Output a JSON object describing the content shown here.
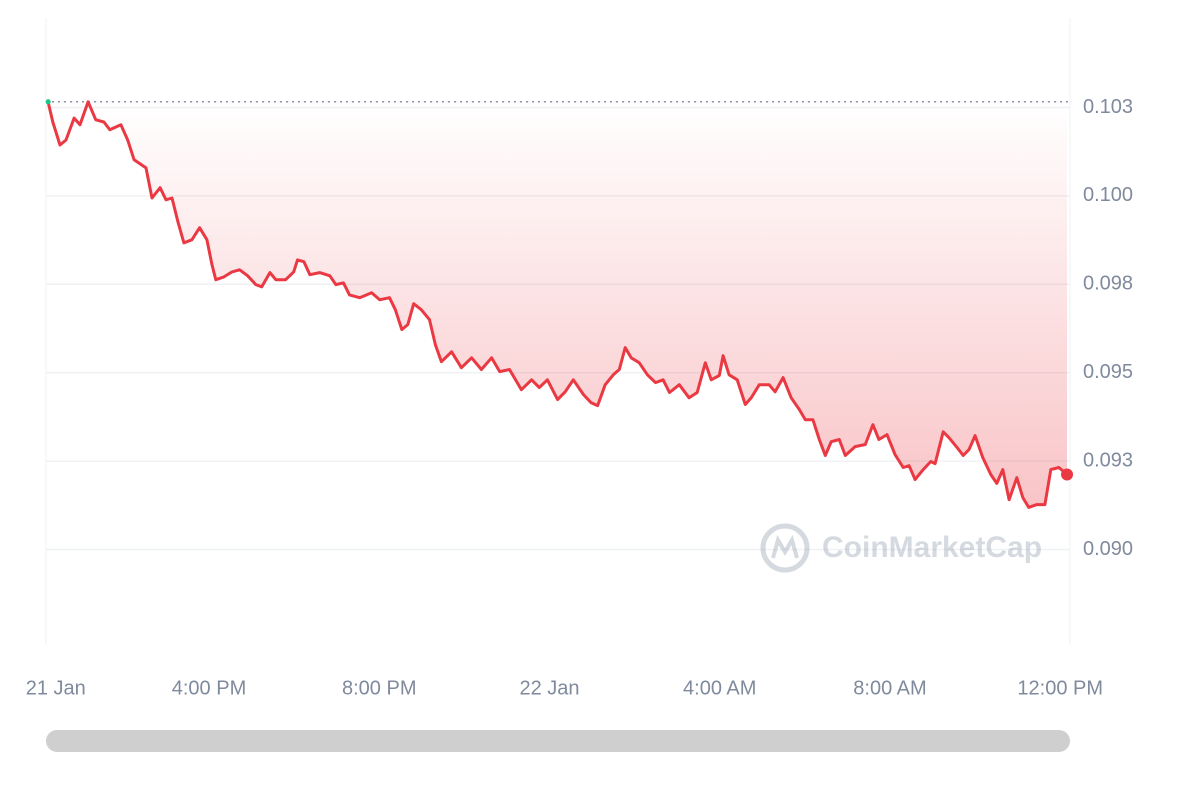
{
  "chart_data": {
    "type": "line",
    "watermark": "CoinMarketCap",
    "color": "#ea3943",
    "open_color": "#16c784",
    "grid": true,
    "x": [
      12.22,
      12.33,
      12.5,
      12.64,
      12.83,
      12.97,
      13.16,
      13.34,
      13.53,
      13.67,
      13.93,
      14.09,
      14.24,
      14.52,
      14.66,
      14.85,
      14.99,
      15.13,
      15.27,
      15.41,
      15.6,
      15.78,
      15.95,
      16.07,
      16.16,
      16.35,
      16.54,
      16.72,
      16.91,
      17.1,
      17.24,
      17.43,
      17.57,
      17.8,
      17.99,
      18.08,
      18.23,
      18.37,
      18.6,
      18.84,
      18.98,
      19.16,
      19.3,
      19.54,
      19.82,
      20.01,
      20.24,
      20.38,
      20.53,
      20.67,
      20.81,
      20.99,
      21.18,
      21.32,
      21.46,
      21.7,
      21.93,
      22.17,
      22.4,
      22.64,
      22.83,
      23.06,
      23.34,
      23.58,
      23.76,
      23.95,
      24.19,
      24.37,
      24.56,
      24.8,
      24.98,
      25.13,
      25.31,
      25.5,
      25.64,
      25.78,
      25.92,
      26.11,
      26.3,
      26.49,
      26.67,
      26.82,
      27.05,
      27.28,
      27.47,
      27.66,
      27.8,
      27.99,
      28.08,
      28.22,
      28.41,
      28.6,
      28.74,
      28.93,
      29.16,
      29.3,
      29.49,
      29.68,
      29.87,
      30.01,
      30.19,
      30.34,
      30.48,
      30.62,
      30.81,
      30.95,
      31.18,
      31.42,
      31.6,
      31.74,
      31.93,
      32.12,
      32.31,
      32.45,
      32.59,
      32.78,
      32.96,
      33.06,
      33.25,
      33.39,
      33.58,
      33.72,
      33.86,
      34.0,
      34.18,
      34.37,
      34.51,
      34.65,
      34.8,
      34.98,
      35.12,
      35.26,
      35.45,
      35.64,
      35.78,
      35.97,
      36.16
    ],
    "values": [
      0.10266,
      0.10209,
      0.10144,
      0.10158,
      0.1022,
      0.10201,
      0.10266,
      0.10215,
      0.10209,
      0.10187,
      0.10201,
      0.10158,
      0.10102,
      0.10079,
      0.09994,
      0.10023,
      0.09989,
      0.09994,
      0.09927,
      0.09867,
      0.09876,
      0.0991,
      0.09876,
      0.09805,
      0.09763,
      0.09771,
      0.09785,
      0.09791,
      0.09774,
      0.09749,
      0.09743,
      0.09783,
      0.09763,
      0.09763,
      0.09785,
      0.09819,
      0.09814,
      0.09777,
      0.09783,
      0.09774,
      0.09749,
      0.09754,
      0.0972,
      0.09712,
      0.09726,
      0.09706,
      0.09712,
      0.09678,
      0.09622,
      0.09636,
      0.09695,
      0.09678,
      0.0965,
      0.09579,
      0.09531,
      0.09559,
      0.09514,
      0.09542,
      0.09509,
      0.09542,
      0.09503,
      0.09509,
      0.09452,
      0.0948,
      0.09458,
      0.0948,
      0.09424,
      0.09446,
      0.0948,
      0.09438,
      0.09415,
      0.09407,
      0.09466,
      0.09494,
      0.09509,
      0.09571,
      0.09542,
      0.09528,
      0.09494,
      0.09472,
      0.0948,
      0.09444,
      0.09466,
      0.09429,
      0.09444,
      0.09528,
      0.0948,
      0.09492,
      0.09548,
      0.09494,
      0.0948,
      0.0941,
      0.09429,
      0.09466,
      0.09466,
      0.09446,
      0.09486,
      0.09429,
      0.09396,
      0.09367,
      0.09367,
      0.09311,
      0.09266,
      0.09305,
      0.09311,
      0.09266,
      0.09291,
      0.09297,
      0.09353,
      0.09311,
      0.09325,
      0.09268,
      0.09232,
      0.09237,
      0.09198,
      0.09226,
      0.09249,
      0.09243,
      0.09333,
      0.09316,
      0.09288,
      0.09266,
      0.09283,
      0.09322,
      0.0926,
      0.09212,
      0.09187,
      0.09226,
      0.09141,
      0.09203,
      0.09147,
      0.09119,
      0.09127,
      0.09127,
      0.09226,
      0.09232,
      0.09212
    ],
    "xlim": [
      12.17,
      36.23
    ],
    "xticks": [
      {
        "value": 12.4,
        "label": "21 Jan"
      },
      {
        "value": 16,
        "label": "4:00 PM"
      },
      {
        "value": 20,
        "label": "8:00 PM"
      },
      {
        "value": 24,
        "label": "22 Jan"
      },
      {
        "value": 28,
        "label": "4:00 AM"
      },
      {
        "value": 32,
        "label": "8:00 AM"
      },
      {
        "value": 36,
        "label": "12:00 PM"
      }
    ],
    "ylim": [
      0.0873,
      0.10503
    ],
    "yticks": [
      {
        "value": 0.09,
        "label": "0.090"
      },
      {
        "value": 0.0925,
        "label": "0.093"
      },
      {
        "value": 0.095,
        "label": "0.095"
      },
      {
        "value": 0.0975,
        "label": "0.098"
      },
      {
        "value": 0.1,
        "label": "0.100"
      },
      {
        "value": 0.1025,
        "label": "0.103"
      }
    ]
  }
}
